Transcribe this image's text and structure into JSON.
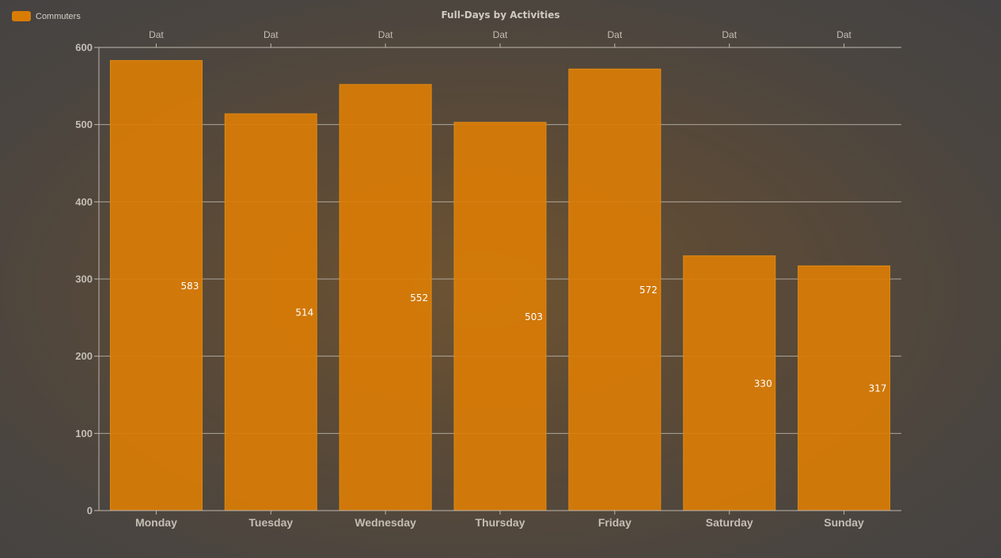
{
  "legend": {
    "label": "Commuters",
    "color": "#d97c06"
  },
  "chart_data": {
    "type": "bar",
    "title": "Full-Days by Activities",
    "categories": [
      "Monday",
      "Tuesday",
      "Wednesday",
      "Thursday",
      "Friday",
      "Saturday",
      "Sunday"
    ],
    "top_axis_labels": [
      "Dat",
      "Dat",
      "Dat",
      "Dat",
      "Dat",
      "Dat",
      "Dat"
    ],
    "series": [
      {
        "name": "Commuters",
        "values": [
          583,
          514,
          552,
          503,
          572,
          330,
          317
        ],
        "color": "#d97c06"
      }
    ],
    "ylim": [
      0,
      600
    ],
    "yticks": [
      0,
      100,
      200,
      300,
      400,
      500,
      600
    ],
    "grid": true,
    "legend_position": "top-left"
  }
}
